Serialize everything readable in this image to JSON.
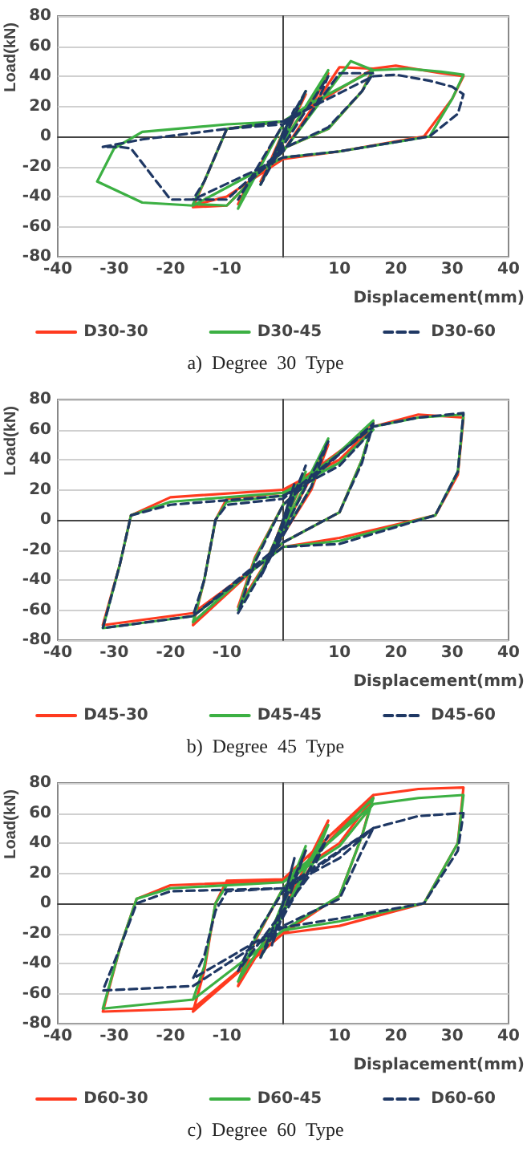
{
  "chart_data": [
    {
      "type": "line",
      "title": "a)  Degree  30  Type",
      "xlabel": "Displacement(mm)",
      "ylabel": "Load(kN)",
      "xlim": [
        -40,
        40
      ],
      "ylim": [
        -80,
        80
      ],
      "xticks": [
        -40,
        -30,
        -20,
        -10,
        10,
        20,
        30,
        40
      ],
      "yticks": [
        -80,
        -60,
        -40,
        -20,
        0,
        20,
        40,
        60,
        80
      ],
      "grid": "y",
      "legend": "bottom",
      "marker": "none",
      "series": [
        {
          "name": "D30-30",
          "color": "#ff3a1f",
          "line_style": "solid",
          "x": [
            0,
            2,
            0,
            -2,
            0,
            4,
            1,
            -4,
            -1,
            8,
            5,
            0,
            -8,
            -6,
            0,
            10,
            16,
            14,
            8,
            0,
            -10,
            -16,
            -14,
            -10,
            0,
            5,
            16,
            20,
            28,
            32,
            30,
            25,
            10,
            0,
            -10,
            -16
          ],
          "values": [
            0,
            14,
            3,
            -14,
            -3,
            28,
            8,
            -30,
            -10,
            42,
            20,
            8,
            -45,
            -30,
            -10,
            46,
            45,
            30,
            5,
            -8,
            -46,
            -47,
            -30,
            5,
            10,
            20,
            45,
            47,
            42,
            40,
            25,
            0,
            -10,
            -15,
            -40,
            -46
          ]
        },
        {
          "name": "D30-45",
          "color": "#3cb043",
          "line_style": "solid",
          "x": [
            0,
            2,
            0,
            -2,
            0,
            4,
            1,
            -4,
            -1,
            8,
            5,
            0,
            -8,
            -6,
            0,
            12,
            16,
            14,
            8,
            0,
            -10,
            -16,
            -14,
            -10,
            0,
            5,
            16,
            22,
            28,
            32,
            30,
            26,
            10,
            0,
            -16,
            -25,
            -33,
            -30,
            -25,
            -10,
            0
          ],
          "values": [
            0,
            16,
            3,
            -16,
            -3,
            30,
            8,
            -32,
            -10,
            44,
            22,
            8,
            -48,
            -30,
            -10,
            50,
            44,
            30,
            5,
            -8,
            -46,
            -45,
            -30,
            5,
            10,
            22,
            44,
            45,
            43,
            41,
            25,
            0,
            -10,
            -14,
            -46,
            -44,
            -30,
            -8,
            3,
            8,
            10
          ]
        },
        {
          "name": "D30-60",
          "color": "#1f3864",
          "line_style": "dashed",
          "x": [
            0,
            2,
            0,
            -2,
            0,
            4,
            1,
            -4,
            -1,
            8,
            6,
            0,
            -8,
            -6,
            0,
            10,
            16,
            14,
            8,
            0,
            -10,
            -16,
            -14,
            -10,
            0,
            8,
            16,
            20,
            26,
            30,
            32,
            31,
            26,
            10,
            0,
            -16,
            -20,
            -27,
            -29,
            -32,
            -25,
            -10,
            0
          ],
          "values": [
            0,
            18,
            3,
            -18,
            -3,
            30,
            10,
            -32,
            -12,
            40,
            22,
            8,
            -42,
            -30,
            -10,
            42,
            42,
            30,
            6,
            -8,
            -42,
            -42,
            -30,
            5,
            10,
            25,
            40,
            41,
            37,
            33,
            28,
            15,
            0,
            -10,
            -14,
            -42,
            -42,
            -8,
            -7,
            -7,
            -2,
            5,
            8
          ]
        }
      ]
    },
    {
      "type": "line",
      "title": "b)  Degree  45  Type",
      "xlabel": "Displacement(mm)",
      "ylabel": "Load(kN)",
      "xlim": [
        -40,
        40
      ],
      "ylim": [
        -80,
        80
      ],
      "xticks": [
        -40,
        -30,
        -20,
        -10,
        10,
        20,
        30,
        40
      ],
      "yticks": [
        -80,
        -60,
        -40,
        -20,
        0,
        20,
        40,
        60,
        80
      ],
      "grid": "y",
      "legend": "bottom",
      "marker": "none",
      "series": [
        {
          "name": "D45-30",
          "color": "#ff3a1f",
          "line_style": "solid",
          "x": [
            0,
            2,
            -2,
            4,
            -4,
            8,
            5,
            -8,
            -5,
            0,
            16,
            14,
            10,
            0,
            -16,
            -14,
            -12,
            -10,
            0,
            16,
            24,
            32,
            31,
            27,
            10,
            0,
            -16,
            -32,
            -29,
            -27,
            -20,
            0,
            10,
            16
          ],
          "values": [
            0,
            20,
            -20,
            30,
            -35,
            50,
            20,
            -58,
            -25,
            10,
            65,
            40,
            5,
            -15,
            -70,
            -40,
            0,
            14,
            18,
            62,
            70,
            68,
            30,
            3,
            -12,
            -18,
            -62,
            -70,
            -30,
            3,
            15,
            20,
            40,
            62
          ]
        },
        {
          "name": "D45-45",
          "color": "#3cb043",
          "line_style": "solid",
          "x": [
            0,
            2,
            -2,
            4,
            -4,
            8,
            5,
            -8,
            -5,
            0,
            16,
            14,
            10,
            0,
            -16,
            -14,
            -12,
            -10,
            0,
            16,
            24,
            32,
            31,
            27,
            10,
            0,
            -16,
            -32,
            -29,
            -27,
            -20,
            0,
            10,
            16
          ],
          "values": [
            0,
            22,
            -22,
            32,
            -36,
            54,
            22,
            -60,
            -26,
            10,
            66,
            40,
            5,
            -15,
            -68,
            -40,
            0,
            12,
            16,
            62,
            68,
            70,
            32,
            3,
            -14,
            -18,
            -64,
            -72,
            -30,
            3,
            12,
            18,
            38,
            60
          ]
        },
        {
          "name": "D45-60",
          "color": "#1f3864",
          "line_style": "dashed",
          "x": [
            0,
            2,
            -2,
            4,
            -4,
            8,
            5,
            -8,
            -5,
            0,
            16,
            14,
            10,
            0,
            -16,
            -14,
            -12,
            -10,
            0,
            16,
            24,
            32,
            31,
            27,
            10,
            0,
            -16,
            -32,
            -29,
            -27,
            -20,
            0,
            10,
            16
          ],
          "values": [
            0,
            24,
            -24,
            36,
            -38,
            52,
            22,
            -62,
            -28,
            10,
            64,
            38,
            5,
            -15,
            -64,
            -40,
            0,
            10,
            14,
            62,
            68,
            71,
            32,
            3,
            -16,
            -18,
            -64,
            -72,
            -30,
            3,
            10,
            16,
            36,
            60
          ]
        }
      ]
    },
    {
      "type": "line",
      "title": "c)  Degree  60  Type",
      "xlabel": "Displacement(mm)",
      "ylabel": "Load(kN)",
      "xlim": [
        -40,
        40
      ],
      "ylim": [
        -80,
        80
      ],
      "xticks": [
        -40,
        -30,
        -20,
        -10,
        10,
        20,
        30,
        40
      ],
      "yticks": [
        -80,
        -60,
        -40,
        -20,
        0,
        20,
        40,
        60,
        80
      ],
      "grid": "y",
      "legend": "bottom",
      "marker": "none",
      "series": [
        {
          "name": "D60-30",
          "color": "#ff3a1f",
          "line_style": "solid",
          "x": [
            0,
            2,
            -2,
            4,
            -4,
            8,
            5,
            -8,
            -5,
            0,
            16,
            14,
            10,
            0,
            -16,
            -14,
            -12,
            -10,
            0,
            16,
            24,
            32,
            31,
            25,
            10,
            0,
            -16,
            -32,
            -29,
            -26,
            -20,
            0,
            10,
            16
          ],
          "values": [
            0,
            20,
            -20,
            35,
            -35,
            55,
            25,
            -55,
            -25,
            10,
            72,
            45,
            5,
            -20,
            -72,
            -45,
            0,
            15,
            16,
            72,
            76,
            77,
            40,
            0,
            -15,
            -20,
            -70,
            -72,
            -30,
            3,
            12,
            15,
            40,
            70
          ]
        },
        {
          "name": "D60-45",
          "color": "#3cb043",
          "line_style": "solid",
          "x": [
            0,
            2,
            -2,
            4,
            -4,
            8,
            5,
            -8,
            -5,
            0,
            16,
            14,
            10,
            0,
            -16,
            -14,
            -12,
            -10,
            0,
            16,
            24,
            32,
            31,
            25,
            10,
            0,
            -16,
            -32,
            -29,
            -26,
            -20,
            0,
            10,
            16
          ],
          "values": [
            0,
            22,
            -22,
            38,
            -36,
            52,
            24,
            -52,
            -24,
            10,
            70,
            45,
            5,
            -18,
            -64,
            -42,
            0,
            12,
            14,
            66,
            70,
            72,
            40,
            0,
            -12,
            -18,
            -64,
            -70,
            -30,
            3,
            10,
            14,
            38,
            66
          ]
        },
        {
          "name": "D60-60",
          "color": "#1f3864",
          "line_style": "dashed",
          "x": [
            0,
            2,
            -2,
            4,
            -4,
            8,
            5,
            -8,
            -5,
            0,
            16,
            14,
            10,
            0,
            -16,
            -14,
            -12,
            -10,
            0,
            16,
            24,
            32,
            31,
            25,
            10,
            0,
            -16,
            -32,
            -29,
            -26,
            -20,
            0,
            10,
            16
          ],
          "values": [
            0,
            30,
            -28,
            35,
            -36,
            45,
            20,
            -45,
            -22,
            8,
            50,
            35,
            3,
            -15,
            -50,
            -35,
            -5,
            8,
            10,
            50,
            58,
            60,
            35,
            0,
            -10,
            -16,
            -55,
            -58,
            -30,
            0,
            8,
            10,
            30,
            50
          ]
        }
      ]
    }
  ]
}
